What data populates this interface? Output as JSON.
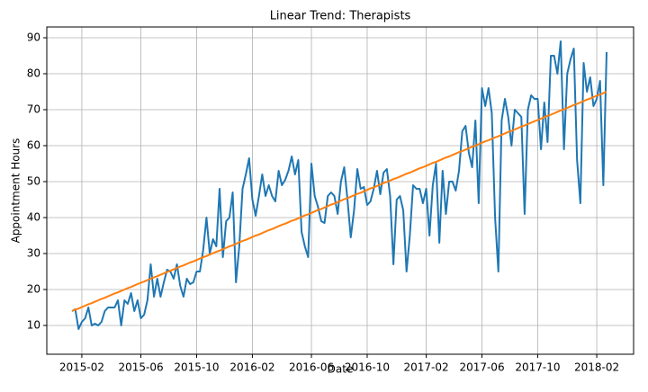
{
  "chart_data": {
    "type": "line",
    "title": "Linear Trend: Therapists",
    "x_label": "Date",
    "y_label": "Appointment Hours",
    "categories": [
      null,
      null,
      null,
      "2015-02",
      null,
      null,
      null,
      null,
      null,
      null,
      null,
      null,
      null,
      null,
      null,
      null,
      null,
      null,
      null,
      null,
      null,
      "2015-06",
      null,
      null,
      null,
      null,
      null,
      null,
      null,
      null,
      null,
      null,
      null,
      null,
      null,
      null,
      null,
      null,
      "2015-10",
      null,
      null,
      null,
      null,
      null,
      null,
      null,
      null,
      null,
      null,
      null,
      null,
      null,
      null,
      null,
      null,
      "2016-02",
      null,
      null,
      null,
      null,
      null,
      null,
      null,
      null,
      null,
      null,
      null,
      null,
      null,
      null,
      null,
      null,
      null,
      "2016-06",
      null,
      null,
      null,
      null,
      null,
      null,
      null,
      null,
      null,
      null,
      null,
      null,
      null,
      null,
      null,
      null,
      "2016-10",
      null,
      null,
      null,
      null,
      null,
      null,
      null,
      null,
      null,
      null,
      null,
      null,
      null,
      null,
      null,
      null,
      null,
      "2017-02",
      null,
      null,
      null,
      null,
      null,
      null,
      null,
      null,
      null,
      null,
      null,
      null,
      null,
      null,
      null,
      null,
      "2017-06",
      null,
      null,
      null,
      null,
      null,
      null,
      null,
      null,
      null,
      null,
      null,
      null,
      null,
      null,
      null,
      null,
      "2017-10",
      null,
      null,
      null,
      null,
      null,
      null,
      null,
      null,
      null,
      null,
      null,
      null,
      null,
      null,
      null,
      null,
      null,
      "2018-02",
      null,
      null,
      null
    ],
    "series": [
      {
        "color": "#1f77b4",
        "values": [
          14,
          14.5,
          9,
          11,
          12,
          15,
          10,
          10.5,
          10,
          11,
          14,
          15,
          15,
          15,
          17,
          10,
          17,
          16,
          19,
          14,
          17,
          12,
          13,
          17,
          27,
          18,
          23,
          18,
          22,
          25.5,
          25,
          23,
          27,
          21,
          18,
          23,
          21.5,
          22,
          25,
          25,
          31,
          40,
          30,
          34,
          32,
          48,
          29,
          39,
          40,
          47,
          22,
          32,
          48,
          52,
          56.5,
          45,
          40.5,
          46,
          52,
          46,
          49,
          46,
          44.5,
          53,
          49,
          50.5,
          53,
          57,
          52,
          56,
          36,
          32,
          29,
          55,
          46,
          43,
          39,
          38.5,
          46,
          47,
          46,
          41,
          50,
          54,
          45,
          34.5,
          42,
          53.5,
          48,
          48.5,
          43.5,
          44.5,
          48,
          53,
          46.5,
          52.5,
          53.5,
          46,
          27,
          45,
          46,
          42,
          25,
          35,
          49,
          48,
          48,
          44,
          48,
          35,
          49,
          55,
          33,
          53,
          41,
          50,
          50,
          47.5,
          53,
          64,
          65.5,
          58,
          54,
          67,
          44,
          76,
          71,
          76,
          69,
          40,
          25,
          67,
          73,
          68,
          60,
          70,
          69,
          68,
          41,
          70,
          74,
          73,
          73,
          59,
          72,
          61,
          85,
          85,
          80,
          89,
          59,
          80,
          84,
          87,
          56,
          44,
          83,
          75,
          79,
          71,
          73,
          78,
          49,
          86
        ]
      },
      {
        "color": "#ff7f0e",
        "values": [
          14.0,
          14.4,
          14.7,
          15.1,
          15.5,
          15.9,
          16.2,
          16.6,
          17.0,
          17.4,
          17.7,
          18.1,
          18.5,
          18.9,
          19.2,
          19.6,
          20.0,
          20.4,
          20.7,
          21.1,
          21.5,
          21.9,
          22.2,
          22.6,
          23.0,
          23.4,
          23.7,
          24.1,
          24.5,
          24.9,
          25.2,
          25.6,
          26.0,
          26.4,
          26.7,
          27.1,
          27.5,
          27.8,
          28.2,
          28.6,
          29.0,
          29.3,
          29.7,
          30.1,
          30.5,
          30.8,
          31.2,
          31.6,
          32.0,
          32.3,
          32.7,
          33.1,
          33.5,
          33.8,
          34.2,
          34.6,
          35.0,
          35.3,
          35.7,
          36.1,
          36.5,
          36.8,
          37.2,
          37.6,
          38.0,
          38.3,
          38.7,
          39.1,
          39.4,
          39.8,
          40.2,
          40.6,
          40.9,
          41.3,
          41.7,
          42.1,
          42.4,
          42.8,
          43.2,
          43.6,
          43.9,
          44.3,
          44.7,
          45.1,
          45.4,
          45.8,
          46.2,
          46.6,
          46.9,
          47.3,
          47.7,
          48.1,
          48.4,
          48.8,
          49.2,
          49.6,
          49.9,
          50.3,
          50.7,
          51.0,
          51.4,
          51.8,
          52.2,
          52.5,
          52.9,
          53.3,
          53.7,
          54.0,
          54.4,
          54.8,
          55.2,
          55.5,
          55.9,
          56.3,
          56.7,
          57.0,
          57.4,
          57.8,
          58.2,
          58.5,
          58.9,
          59.3,
          59.7,
          60.0,
          60.4,
          60.8,
          61.2,
          61.5,
          61.9,
          62.3,
          62.6,
          63.0,
          63.4,
          63.8,
          64.1,
          64.5,
          64.9,
          65.3,
          65.6,
          66.0,
          66.4,
          66.8,
          67.1,
          67.5,
          67.9,
          68.3,
          68.6,
          69.0,
          69.4,
          69.8,
          70.1,
          70.5,
          70.9,
          71.3,
          71.6,
          72.0,
          72.4,
          72.8,
          73.1,
          73.5,
          73.9,
          74.2,
          74.6,
          75.0
        ]
      }
    ],
    "ylim": [
      2,
      93
    ],
    "yticks": [
      10,
      20,
      30,
      40,
      50,
      60,
      70,
      80,
      90
    ],
    "grid": true
  }
}
